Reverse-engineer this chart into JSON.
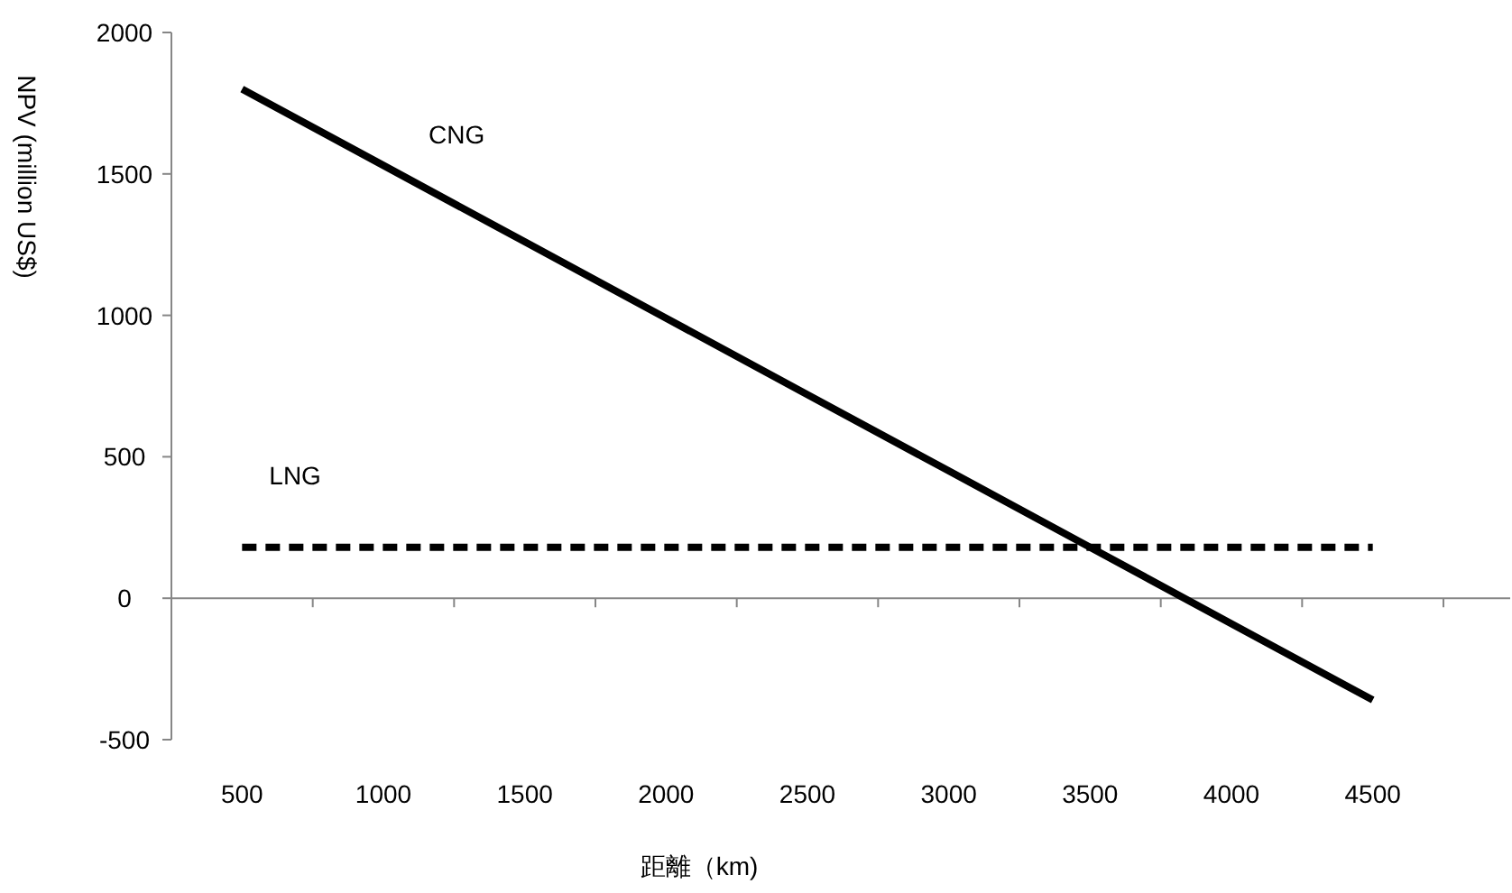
{
  "chart_data": {
    "type": "line",
    "xlabel": "距離（km)",
    "ylabel": "NPV (million US$)",
    "categories": [
      "500",
      "1000",
      "1500",
      "2000",
      "2500",
      "3000",
      "3500",
      "4000",
      "4500"
    ],
    "series": [
      {
        "name": "CNG",
        "color": "#000000",
        "line_style": "solid",
        "values": [
          1800,
          1530,
          1260,
          990,
          720,
          450,
          180,
          -90,
          -360
        ]
      },
      {
        "name": "LNG",
        "color": "#000000",
        "line_style": "dashed",
        "values": [
          180,
          180,
          180,
          180,
          180,
          180,
          180,
          180,
          180
        ]
      }
    ],
    "ylim": [
      -500,
      2000
    ],
    "yticks": [
      -500,
      0,
      500,
      1000,
      1500,
      2000
    ]
  }
}
